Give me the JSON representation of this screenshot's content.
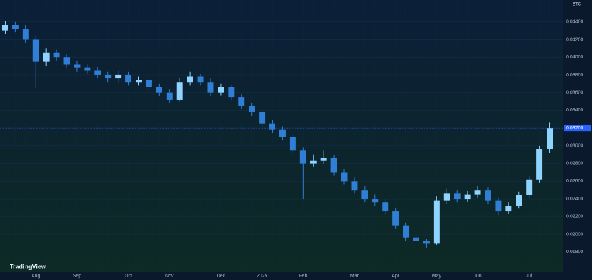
{
  "chart_data": {
    "type": "candlestick",
    "symbol": "BTC",
    "brand": "TradingView",
    "categories": [
      null,
      null,
      null,
      "Aug",
      null,
      null,
      null,
      "Sep",
      null,
      null,
      null,
      null,
      "Oct",
      null,
      null,
      null,
      "Nov",
      null,
      null,
      null,
      null,
      "Dec",
      null,
      null,
      null,
      "2025",
      null,
      null,
      null,
      "Feb",
      null,
      null,
      null,
      null,
      "Mar",
      null,
      null,
      null,
      "Apr",
      null,
      null,
      null,
      "May",
      null,
      null,
      null,
      "Jun",
      null,
      null,
      null,
      null,
      "Jul",
      null,
      null
    ],
    "open": [
      0.043,
      0.0436,
      0.0432,
      0.042,
      0.0395,
      0.0405,
      0.04,
      0.0392,
      0.0388,
      0.0385,
      0.038,
      0.0376,
      0.038,
      0.0372,
      0.0374,
      0.0366,
      0.036,
      0.0352,
      0.0372,
      0.0378,
      0.0372,
      0.036,
      0.0366,
      0.0355,
      0.0345,
      0.0338,
      0.0325,
      0.0318,
      0.031,
      0.0295,
      0.028,
      0.0283,
      0.0286,
      0.027,
      0.026,
      0.025,
      0.024,
      0.0236,
      0.0226,
      0.021,
      0.0196,
      0.0192,
      0.019,
      0.0238,
      0.0246,
      0.024,
      0.0245,
      0.025,
      0.0238,
      0.0226,
      0.0232,
      0.0244,
      0.0262,
      0.0296
    ],
    "high": [
      0.0441,
      0.044,
      0.0436,
      0.0424,
      0.041,
      0.0409,
      0.0404,
      0.0396,
      0.0392,
      0.0389,
      0.0384,
      0.0385,
      0.0384,
      0.0378,
      0.0377,
      0.037,
      0.0364,
      0.0377,
      0.0384,
      0.0381,
      0.0376,
      0.037,
      0.0369,
      0.0358,
      0.0349,
      0.0341,
      0.0329,
      0.0322,
      0.0313,
      0.0298,
      0.029,
      0.0295,
      0.0289,
      0.0274,
      0.0264,
      0.0254,
      0.0245,
      0.024,
      0.0229,
      0.0213,
      0.02,
      0.0195,
      0.0243,
      0.0252,
      0.025,
      0.0249,
      0.0254,
      0.0253,
      0.0241,
      0.0236,
      0.0248,
      0.0266,
      0.03,
      0.0326
    ],
    "low": [
      0.0426,
      0.0428,
      0.0416,
      0.0365,
      0.039,
      0.0396,
      0.0388,
      0.0384,
      0.0381,
      0.0376,
      0.0372,
      0.0372,
      0.0368,
      0.0368,
      0.0362,
      0.0356,
      0.0348,
      0.035,
      0.0368,
      0.0368,
      0.0356,
      0.0357,
      0.0351,
      0.0341,
      0.0334,
      0.0321,
      0.0314,
      0.0306,
      0.029,
      0.024,
      0.0276,
      0.0279,
      0.0266,
      0.0256,
      0.0246,
      0.0236,
      0.0232,
      0.0222,
      0.0206,
      0.0192,
      0.0188,
      0.0185,
      0.0188,
      0.0234,
      0.0236,
      0.0237,
      0.0241,
      0.0234,
      0.0222,
      0.0223,
      0.0229,
      0.0241,
      0.0258,
      0.0292
    ],
    "close": [
      0.0436,
      0.0432,
      0.042,
      0.0395,
      0.0405,
      0.04,
      0.0392,
      0.0388,
      0.0385,
      0.038,
      0.0376,
      0.038,
      0.0372,
      0.0374,
      0.0366,
      0.036,
      0.0352,
      0.0372,
      0.0378,
      0.0372,
      0.036,
      0.0366,
      0.0355,
      0.0345,
      0.0338,
      0.0325,
      0.0318,
      0.031,
      0.0295,
      0.028,
      0.0283,
      0.0286,
      0.027,
      0.026,
      0.025,
      0.024,
      0.0236,
      0.0226,
      0.021,
      0.0196,
      0.0192,
      0.019,
      0.0238,
      0.0246,
      0.024,
      0.0245,
      0.025,
      0.0238,
      0.0226,
      0.0232,
      0.0244,
      0.0262,
      0.0296,
      0.032
    ],
    "up_color": "#8fd3ff",
    "down_color": "#2f7fd6",
    "ylim": [
      0.016,
      0.046
    ],
    "yticks": [
      {
        "value": 0.018,
        "label": "0.01800"
      },
      {
        "value": 0.02,
        "label": "0.02000"
      },
      {
        "value": 0.022,
        "label": "0.02200"
      },
      {
        "value": 0.024,
        "label": "0.02400"
      },
      {
        "value": 0.026,
        "label": "0.02600"
      },
      {
        "value": 0.028,
        "label": "0.02800"
      },
      {
        "value": 0.03,
        "label": "0.03000"
      },
      {
        "value": 0.032,
        "label": "0.03200"
      },
      {
        "value": 0.034,
        "label": "0.03400"
      },
      {
        "value": 0.036,
        "label": "0.03600"
      },
      {
        "value": 0.038,
        "label": "0.03800"
      },
      {
        "value": 0.04,
        "label": "0.04000"
      },
      {
        "value": 0.042,
        "label": "0.04200"
      },
      {
        "value": 0.044,
        "label": "0.04400"
      }
    ],
    "last_price": {
      "value": 0.032,
      "label": "0.03200"
    },
    "grid": true
  }
}
